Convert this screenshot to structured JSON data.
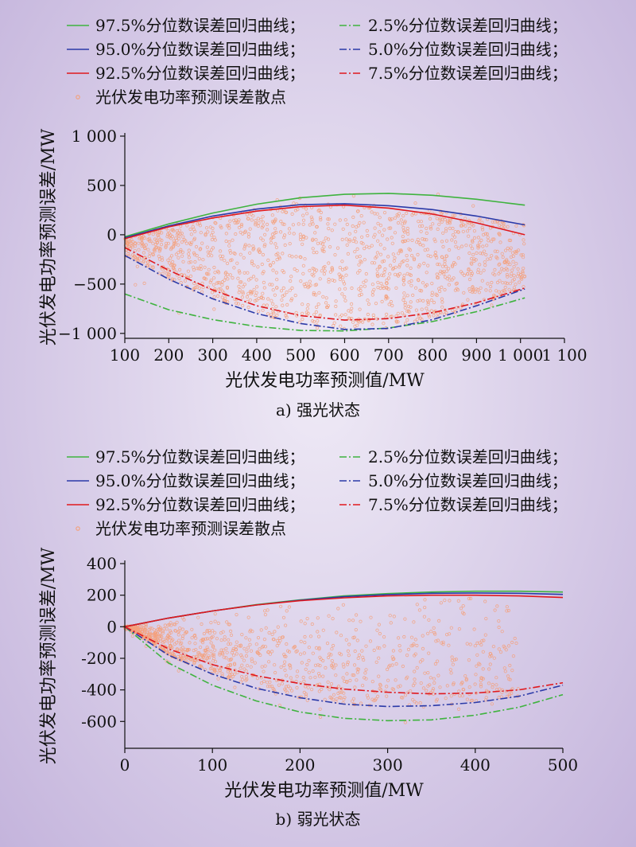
{
  "chart_data": [
    {
      "type": "line",
      "subtitle": "a) 强光状态",
      "xlabel": "光伏发电功率预测值/MW",
      "ylabel": "光伏发电功率预测误差/MW",
      "xlim": [
        100,
        1100
      ],
      "ylim": [
        -1050,
        1000
      ],
      "xticks": [
        100,
        200,
        300,
        400,
        500,
        600,
        700,
        800,
        900,
        1000,
        1100
      ],
      "xtick_labels": [
        "100",
        "200",
        "300",
        "400",
        "500",
        "600",
        "700",
        "800",
        "900",
        "1 000",
        "1 100"
      ],
      "yticks": [
        -1000,
        -500,
        0,
        500,
        1000
      ],
      "ytick_labels": [
        "−1 000",
        "−500",
        "0",
        "500",
        "1 000"
      ],
      "legend": [
        {
          "label": "97.5%分位数误差回归曲线；",
          "color": "#3fb33f",
          "dash": "solid",
          "kind": "line"
        },
        {
          "label": "2.5%分位数误差回归曲线；",
          "color": "#3fb33f",
          "dash": "dashdot",
          "kind": "line"
        },
        {
          "label": "95.0%分位数误差回归曲线；",
          "color": "#2b3aa8",
          "dash": "solid",
          "kind": "line"
        },
        {
          "label": "5.0%分位数误差回归曲线；",
          "color": "#2b3aa8",
          "dash": "dashdot",
          "kind": "line"
        },
        {
          "label": "92.5%分位数误差回归曲线；",
          "color": "#e0191e",
          "dash": "solid",
          "kind": "line"
        },
        {
          "label": "7.5%分位数误差回归曲线；",
          "color": "#e0191e",
          "dash": "dashdot",
          "kind": "line"
        },
        {
          "label": "光伏发电功率预测误差散点",
          "color": "#f4a07a",
          "dash": "none",
          "kind": "scatter"
        }
      ],
      "series": [
        {
          "color": "#3fb33f",
          "dash": "solid",
          "x": [
            100,
            200,
            300,
            400,
            500,
            600,
            700,
            800,
            900,
            1010
          ],
          "y": [
            -20,
            110,
            220,
            310,
            375,
            410,
            420,
            400,
            360,
            300
          ]
        },
        {
          "color": "#2b3aa8",
          "dash": "solid",
          "x": [
            100,
            200,
            300,
            400,
            500,
            600,
            700,
            800,
            900,
            1010
          ],
          "y": [
            -30,
            90,
            190,
            260,
            305,
            315,
            295,
            255,
            190,
            100
          ]
        },
        {
          "color": "#e0191e",
          "dash": "solid",
          "x": [
            100,
            200,
            300,
            400,
            500,
            600,
            700,
            800,
            900,
            1010
          ],
          "y": [
            -40,
            80,
            170,
            240,
            285,
            300,
            270,
            210,
            120,
            0
          ]
        },
        {
          "color": "#3fb33f",
          "dash": "dashdot",
          "x": [
            100,
            200,
            300,
            400,
            500,
            600,
            700,
            800,
            900,
            1010
          ],
          "y": [
            -600,
            -760,
            -860,
            -930,
            -970,
            -975,
            -945,
            -880,
            -780,
            -640
          ]
        },
        {
          "color": "#2b3aa8",
          "dash": "dashdot",
          "x": [
            100,
            200,
            300,
            400,
            500,
            600,
            700,
            800,
            900,
            1010
          ],
          "y": [
            -210,
            -450,
            -650,
            -800,
            -900,
            -960,
            -950,
            -860,
            -720,
            -550
          ]
        },
        {
          "color": "#e0191e",
          "dash": "dashdot",
          "x": [
            100,
            200,
            300,
            400,
            500,
            600,
            700,
            800,
            900,
            1010
          ],
          "y": [
            -130,
            -360,
            -560,
            -720,
            -820,
            -865,
            -850,
            -790,
            -690,
            -540
          ]
        }
      ],
      "scatter": {
        "color": "#f4a07a",
        "x_range": [
          100,
          1010
        ],
        "count": 1400
      }
    },
    {
      "type": "line",
      "subtitle": "b) 弱光状态",
      "xlabel": "光伏发电功率预测值/MW",
      "ylabel": "光伏发电功率预测误差/MW",
      "xlim": [
        0,
        500
      ],
      "ylim": [
        -770,
        400
      ],
      "xticks": [
        0,
        100,
        200,
        300,
        400,
        500
      ],
      "xtick_labels": [
        "0",
        "100",
        "200",
        "300",
        "400",
        "500"
      ],
      "yticks": [
        -600,
        -400,
        -200,
        0,
        200,
        400
      ],
      "ytick_labels": [
        "-600",
        "-400",
        "-200",
        "0",
        "200",
        "400"
      ],
      "legend": [
        {
          "label": "97.5%分位数误差回归曲线；",
          "color": "#3fb33f",
          "dash": "solid",
          "kind": "line"
        },
        {
          "label": "2.5%分位数误差回归曲线；",
          "color": "#3fb33f",
          "dash": "dashdot",
          "kind": "line"
        },
        {
          "label": "95.0%分位数误差回归曲线；",
          "color": "#2b3aa8",
          "dash": "solid",
          "kind": "line"
        },
        {
          "label": "5.0%分位数误差回归曲线；",
          "color": "#2b3aa8",
          "dash": "dashdot",
          "kind": "line"
        },
        {
          "label": "92.5%分位数误差回归曲线；",
          "color": "#e0191e",
          "dash": "solid",
          "kind": "line"
        },
        {
          "label": "7.5%分位数误差回归曲线；",
          "color": "#e0191e",
          "dash": "dashdot",
          "kind": "line"
        },
        {
          "label": "光伏发电功率预测误差散点",
          "color": "#f4a07a",
          "dash": "none",
          "kind": "scatter"
        }
      ],
      "series": [
        {
          "color": "#3fb33f",
          "dash": "solid",
          "x": [
            0,
            50,
            100,
            150,
            200,
            250,
            300,
            350,
            400,
            450,
            500
          ],
          "y": [
            0,
            55,
            100,
            140,
            170,
            195,
            210,
            220,
            225,
            225,
            220
          ]
        },
        {
          "color": "#2b3aa8",
          "dash": "solid",
          "x": [
            0,
            50,
            100,
            150,
            200,
            250,
            300,
            350,
            400,
            450,
            500
          ],
          "y": [
            0,
            55,
            100,
            138,
            168,
            190,
            204,
            212,
            214,
            212,
            205
          ]
        },
        {
          "color": "#e0191e",
          "dash": "solid",
          "x": [
            0,
            50,
            100,
            150,
            200,
            250,
            300,
            350,
            400,
            450,
            500
          ],
          "y": [
            0,
            55,
            100,
            138,
            165,
            183,
            195,
            200,
            200,
            195,
            185
          ]
        },
        {
          "color": "#3fb33f",
          "dash": "dashdot",
          "x": [
            0,
            50,
            100,
            150,
            200,
            250,
            300,
            350,
            400,
            450,
            500
          ],
          "y": [
            0,
            -230,
            -370,
            -470,
            -540,
            -580,
            -595,
            -590,
            -560,
            -510,
            -430
          ]
        },
        {
          "color": "#2b3aa8",
          "dash": "dashdot",
          "x": [
            0,
            50,
            100,
            150,
            200,
            250,
            300,
            350,
            400,
            450,
            500
          ],
          "y": [
            0,
            -180,
            -300,
            -390,
            -450,
            -490,
            -505,
            -500,
            -480,
            -440,
            -370
          ]
        },
        {
          "color": "#e0191e",
          "dash": "dashdot",
          "x": [
            0,
            50,
            100,
            150,
            200,
            250,
            300,
            350,
            400,
            450,
            500
          ],
          "y": [
            0,
            -140,
            -240,
            -310,
            -360,
            -395,
            -415,
            -425,
            -420,
            -400,
            -355
          ]
        }
      ],
      "scatter": {
        "color": "#f4a07a",
        "x_range": [
          0,
          450
        ],
        "count": 1100
      }
    }
  ]
}
